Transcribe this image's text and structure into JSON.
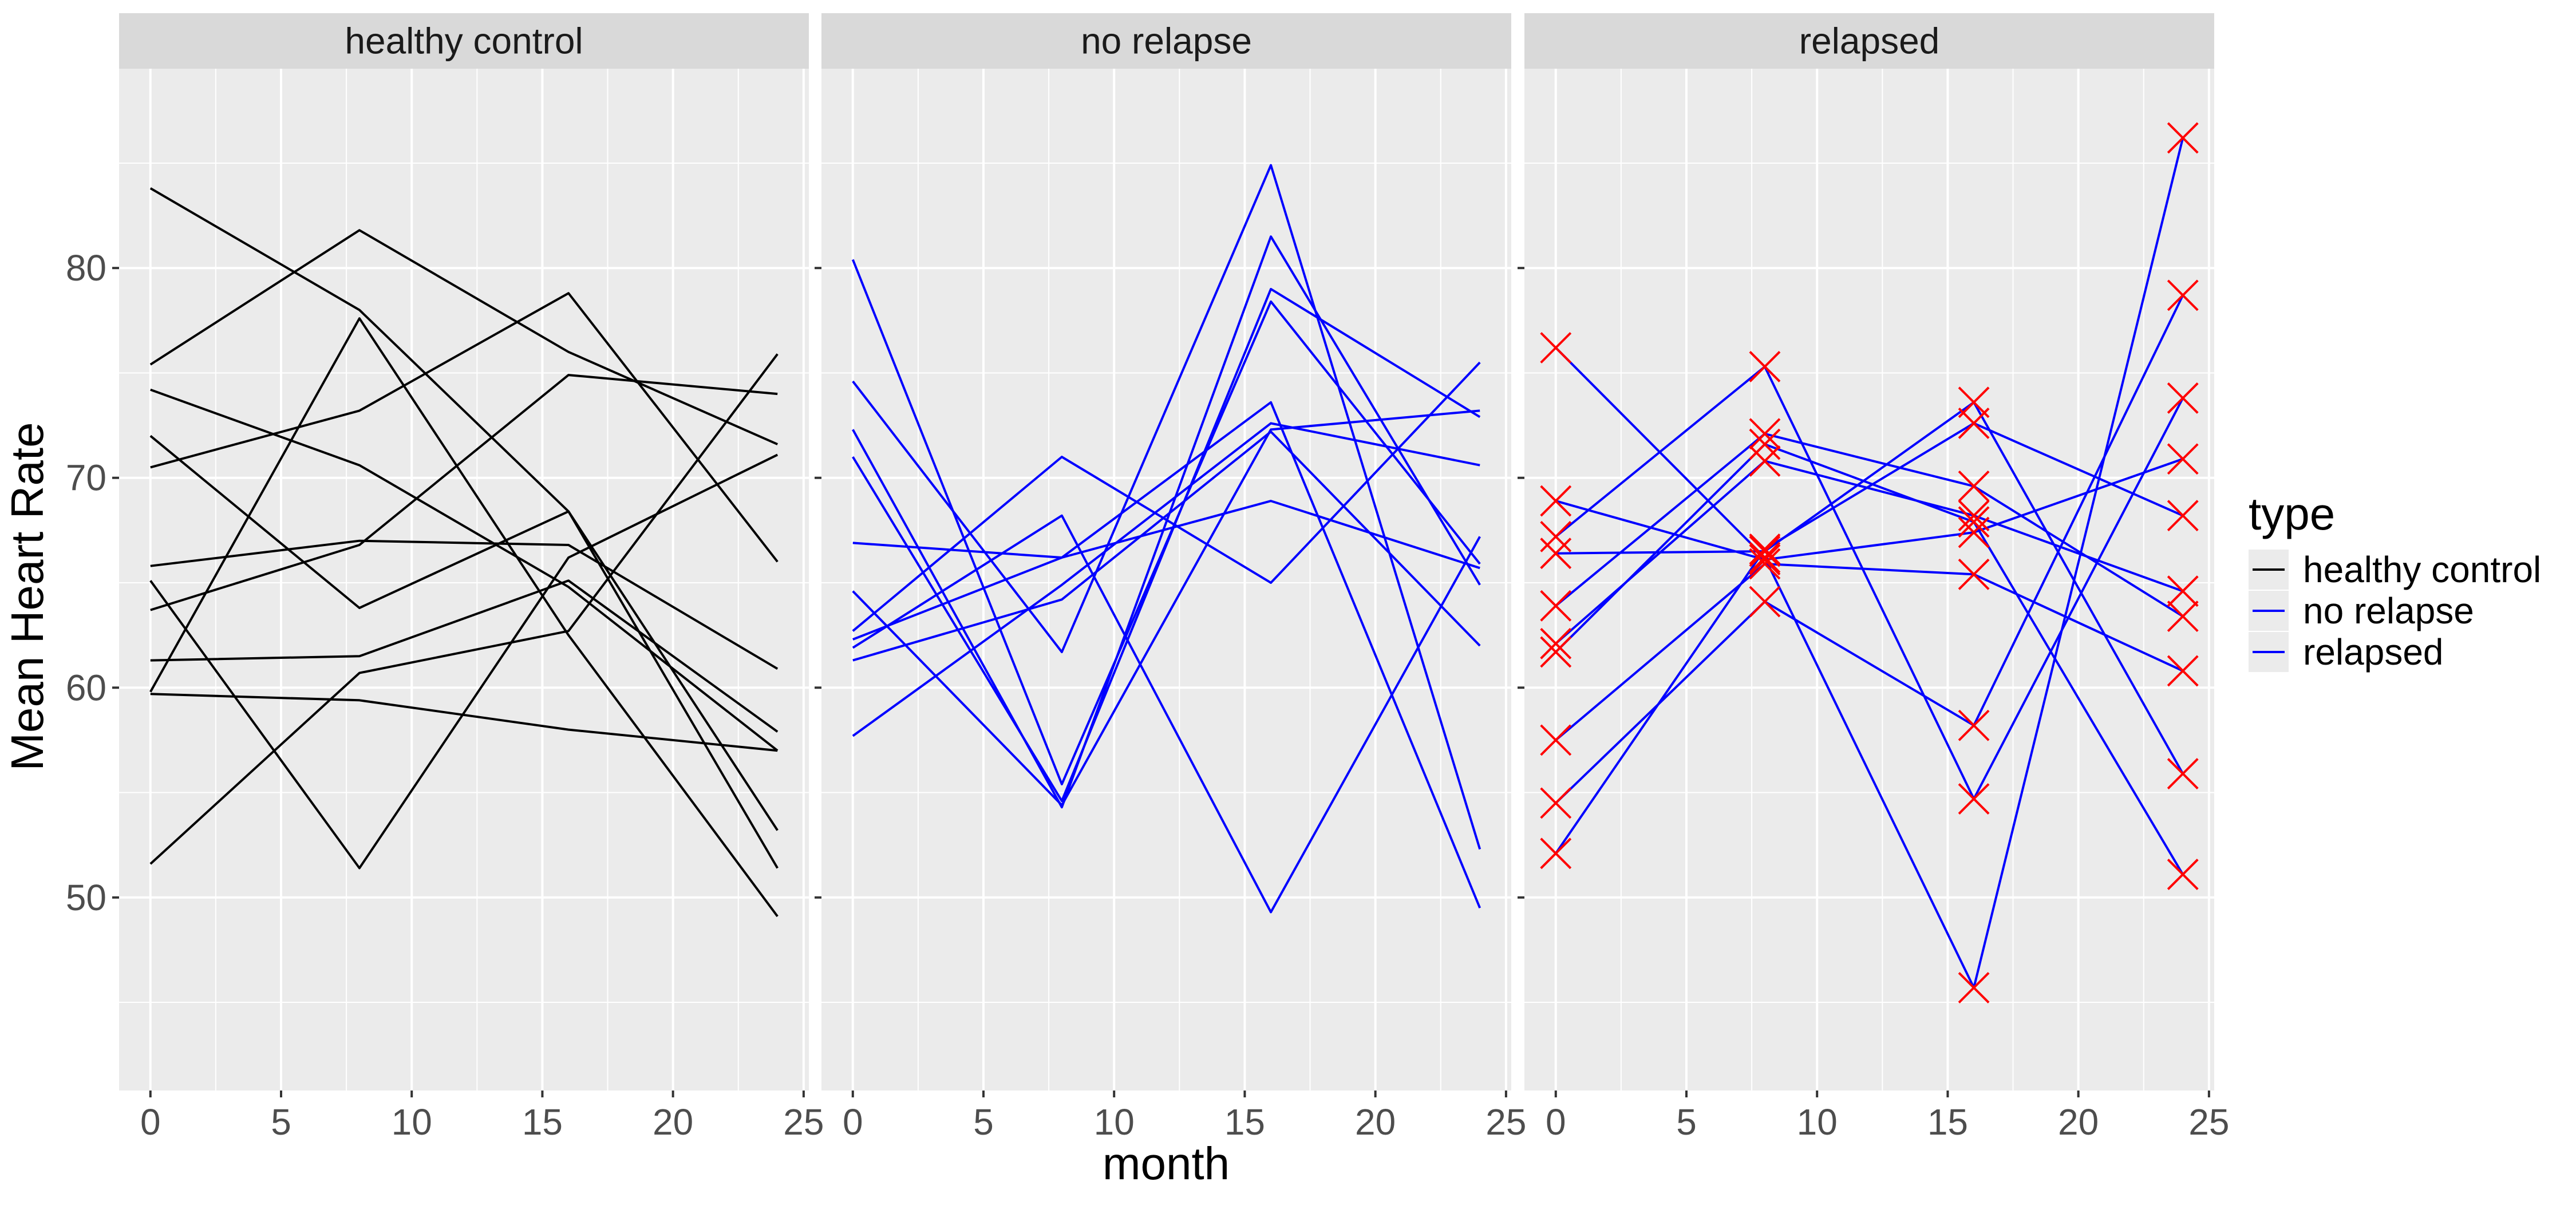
{
  "chart_data": {
    "type": "line",
    "xlabel": "month",
    "ylabel": "Mean Heart Rate",
    "xlim": [
      -1.2,
      25.2
    ],
    "ylim": [
      40.8,
      89.5
    ],
    "x_ticks": [
      0,
      5,
      10,
      15,
      20,
      25
    ],
    "y_ticks": [
      50,
      60,
      70,
      80
    ],
    "grid": true,
    "legend": {
      "title": "type",
      "position": "right",
      "entries": [
        {
          "label": "healthy control",
          "color": "#000000"
        },
        {
          "label": "no relapse",
          "color": "#0000ff"
        },
        {
          "label": "relapsed",
          "color": "#0000ff"
        }
      ]
    },
    "marker_color": "#ff0000",
    "panels": [
      {
        "label": "healthy control",
        "line_color": "#000000",
        "markers": false,
        "series": [
          {
            "x": [
              0,
              8,
              16,
              24
            ],
            "y": [
              83.8,
              78.0,
              68.4,
              51.4
            ]
          },
          {
            "x": [
              0,
              8,
              16,
              24
            ],
            "y": [
              75.4,
              81.8,
              76.0,
              71.6
            ]
          },
          {
            "x": [
              0,
              8,
              16,
              24
            ],
            "y": [
              74.2,
              70.6,
              64.8,
              57.0
            ]
          },
          {
            "x": [
              0,
              8,
              16,
              24
            ],
            "y": [
              72.0,
              63.8,
              68.4,
              53.2
            ]
          },
          {
            "x": [
              0,
              8,
              16,
              24
            ],
            "y": [
              70.5,
              73.2,
              78.8,
              66.0
            ]
          },
          {
            "x": [
              0,
              8,
              16,
              24
            ],
            "y": [
              65.8,
              67.0,
              66.8,
              60.9
            ]
          },
          {
            "x": [
              0,
              8,
              16,
              24
            ],
            "y": [
              65.1,
              51.4,
              66.2,
              71.1
            ]
          },
          {
            "x": [
              0,
              8,
              16,
              24
            ],
            "y": [
              63.7,
              66.8,
              74.9,
              74.0
            ]
          },
          {
            "x": [
              0,
              8,
              16,
              24
            ],
            "y": [
              61.3,
              61.5,
              65.1,
              57.9
            ]
          },
          {
            "x": [
              0,
              8,
              16,
              24
            ],
            "y": [
              59.8,
              77.6,
              62.5,
              49.1
            ]
          },
          {
            "x": [
              0,
              8,
              16,
              24
            ],
            "y": [
              59.7,
              59.4,
              58.0,
              57.0
            ]
          },
          {
            "x": [
              0,
              8,
              16,
              24
            ],
            "y": [
              51.6,
              60.7,
              62.7,
              75.9
            ]
          }
        ]
      },
      {
        "label": "no relapse",
        "line_color": "#0000ff",
        "markers": false,
        "series": [
          {
            "x": [
              0,
              8,
              16,
              24
            ],
            "y": [
              80.4,
              55.4,
              78.4,
              65.9
            ]
          },
          {
            "x": [
              0,
              8,
              16,
              24
            ],
            "y": [
              74.6,
              61.7,
              84.9,
              52.3
            ]
          },
          {
            "x": [
              0,
              8,
              16,
              24
            ],
            "y": [
              72.3,
              54.3,
              81.5,
              64.9
            ]
          },
          {
            "x": [
              0,
              8,
              16,
              24
            ],
            "y": [
              71.0,
              54.6,
              79.0,
              72.9
            ]
          },
          {
            "x": [
              0,
              8,
              16,
              24
            ],
            "y": [
              66.9,
              66.2,
              73.6,
              49.5
            ]
          },
          {
            "x": [
              0,
              8,
              16,
              24
            ],
            "y": [
              64.6,
              54.4,
              72.3,
              73.2
            ]
          },
          {
            "x": [
              0,
              8,
              16,
              24
            ],
            "y": [
              62.7,
              71.0,
              65.0,
              75.5
            ]
          },
          {
            "x": [
              0,
              8,
              16,
              24
            ],
            "y": [
              62.3,
              66.2,
              68.9,
              65.7
            ]
          },
          {
            "x": [
              0,
              8,
              16,
              24
            ],
            "y": [
              61.9,
              68.2,
              49.3,
              67.2
            ]
          },
          {
            "x": [
              0,
              8,
              16,
              24
            ],
            "y": [
              61.3,
              64.2,
              72.2,
              62.0
            ]
          },
          {
            "x": [
              0,
              8,
              16,
              24
            ],
            "y": [
              57.7,
              64.9,
              72.6,
              70.6
            ]
          }
        ]
      },
      {
        "label": "relapsed",
        "line_color": "#0000ff",
        "markers": true,
        "series": [
          {
            "x": [
              0,
              8,
              16,
              24
            ],
            "y": [
              76.2,
              66.2,
              45.7,
              86.2
            ]
          },
          {
            "x": [
              0,
              8,
              16,
              24
            ],
            "y": [
              68.9,
              66.1,
              67.4,
              70.9
            ]
          },
          {
            "x": [
              0,
              8,
              16,
              24
            ],
            "y": [
              67.2,
              75.3,
              54.7,
              73.8
            ]
          },
          {
            "x": [
              0,
              8,
              16,
              24
            ],
            "y": [
              66.4,
              66.5,
              73.6,
              55.9
            ]
          },
          {
            "x": [
              0,
              8,
              16,
              24
            ],
            "y": [
              63.9,
              72.1,
              69.6,
              63.4
            ]
          },
          {
            "x": [
              0,
              8,
              16,
              24
            ],
            "y": [
              62.1,
              70.8,
              68.2,
              64.6
            ]
          },
          {
            "x": [
              0,
              8,
              16,
              24
            ],
            "y": [
              61.7,
              71.6,
              67.9,
              51.1
            ]
          },
          {
            "x": [
              0,
              8,
              16,
              24
            ],
            "y": [
              57.5,
              65.9,
              65.4,
              60.8
            ]
          },
          {
            "x": [
              0,
              8,
              16,
              24
            ],
            "y": [
              54.5,
              64.1,
              58.2,
              78.7
            ]
          },
          {
            "x": [
              0,
              8,
              16,
              24
            ],
            "y": [
              52.1,
              66.6,
              72.6,
              68.2
            ]
          }
        ]
      }
    ]
  }
}
